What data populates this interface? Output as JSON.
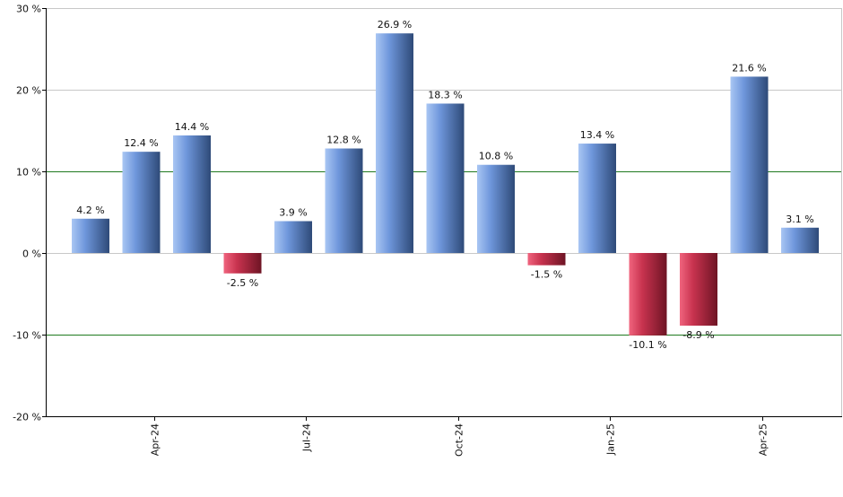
{
  "chart_data": {
    "type": "bar",
    "series": [
      {
        "values": [
          4.2,
          12.4,
          14.4,
          -2.5,
          3.9,
          12.8,
          26.9,
          18.3,
          10.8,
          -1.5,
          13.4,
          -10.1,
          -8.9,
          21.6,
          3.1
        ]
      }
    ],
    "value_labels": [
      "4.2 %",
      "12.4 %",
      "14.4 %",
      "-2.5 %",
      "3.9 %",
      "12.8 %",
      "26.9 %",
      "18.3 %",
      "10.8 %",
      "-1.5 %",
      "13.4 %",
      "-10.1 %",
      "-8.9 %",
      "21.6 %",
      "3.1 %"
    ],
    "x_ticks": [
      {
        "label": "Apr-24",
        "index": 1.25
      },
      {
        "label": "Jul-24",
        "index": 4.25
      },
      {
        "label": "Oct-24",
        "index": 7.25
      },
      {
        "label": "Jan-25",
        "index": 10.25
      },
      {
        "label": "Apr-25",
        "index": 13.25
      }
    ],
    "y_ticks": [
      {
        "value": 30,
        "label": "30 %"
      },
      {
        "value": 20,
        "label": "20 %"
      },
      {
        "value": 10,
        "label": "10 %"
      },
      {
        "value": 0,
        "label": "0 %"
      },
      {
        "value": -10,
        "label": "-10 %"
      },
      {
        "value": -20,
        "label": "-20 %"
      }
    ],
    "ylim": [
      -20,
      30
    ],
    "grid": true,
    "colors": {
      "positive_light": "#a9c6f3",
      "positive_mid": "#6f97dc",
      "positive_dark": "#2e4a78",
      "negative_light": "#f0647e",
      "negative_mid": "#c8334f",
      "negative_dark": "#6e1424",
      "gridline": "#c8c8c8",
      "reference_line": "#1f7a1f",
      "axis": "#000000"
    }
  }
}
